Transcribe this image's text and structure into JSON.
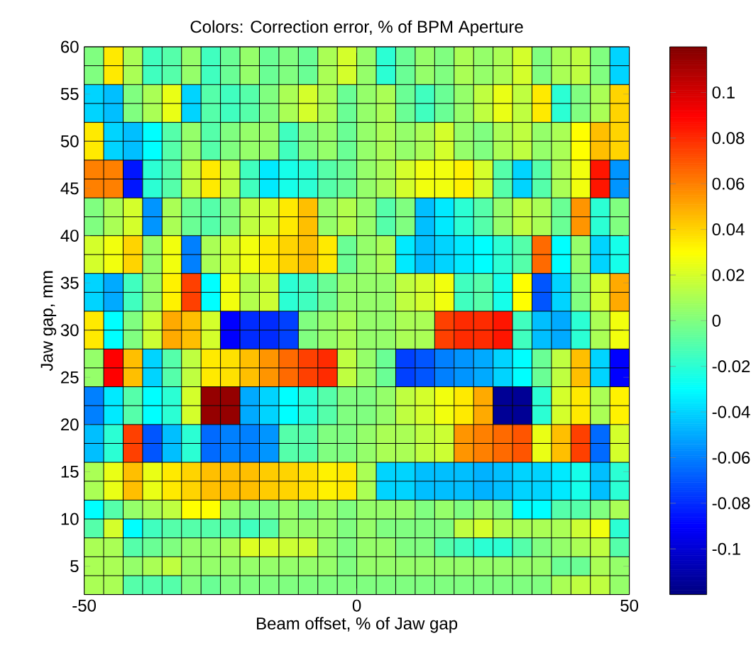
{
  "chart_data": {
    "type": "heatmap",
    "title": "Colors: Correction error, % of BPM Aperture",
    "xlabel": "Beam offset, % of Jaw gap",
    "ylabel": "Jaw gap, mm",
    "grid": true,
    "xlim": [
      -50,
      50
    ],
    "xticks": [
      -50,
      0,
      50
    ],
    "ylim": [
      2,
      60
    ],
    "yticks": [
      5,
      10,
      15,
      20,
      25,
      30,
      35,
      40,
      45,
      50,
      55,
      60
    ],
    "clim": [
      -0.12,
      0.12
    ],
    "cticks": [
      -0.1,
      -0.08,
      -0.06,
      -0.04,
      -0.02,
      0,
      0.02,
      0.04,
      0.06,
      0.08,
      0.1
    ],
    "x": [
      -48.214,
      -44.643,
      -41.071,
      -37.5,
      -33.929,
      -30.357,
      -26.786,
      -23.214,
      -19.643,
      -16.071,
      -12.5,
      -8.929,
      -5.357,
      -1.786,
      1.786,
      5.357,
      8.929,
      12.5,
      16.071,
      19.643,
      23.214,
      26.786,
      30.357,
      33.929,
      37.5,
      41.071,
      44.643,
      48.214
    ],
    "cells": [
      [
        0,
        0.035,
        0.01,
        -0.015,
        -0.01,
        0.005,
        -0.015,
        -0.005,
        0.005,
        -0.005,
        0,
        -0.005,
        0.01,
        0.02,
        0.005,
        -0.02,
        -0.005,
        0.005,
        0,
        0.01,
        0.005,
        0.01,
        0.02,
        0,
        0.01,
        0.015,
        0,
        -0.04
      ],
      [
        0,
        0.035,
        0.01,
        -0.015,
        -0.01,
        0.005,
        -0.015,
        -0.005,
        0.005,
        -0.005,
        0,
        -0.005,
        0.01,
        0.02,
        0.005,
        -0.02,
        -0.005,
        0.005,
        0,
        0.01,
        0.005,
        0.01,
        0.02,
        0,
        0.01,
        0.015,
        0,
        -0.04
      ],
      [
        -0.04,
        -0.045,
        0,
        0.01,
        0.025,
        -0.04,
        -0.01,
        -0.015,
        -0.01,
        0,
        0.01,
        0.02,
        0.01,
        -0.005,
        0.005,
        0.01,
        -0.005,
        -0.015,
        -0.005,
        0.005,
        0.015,
        0.025,
        0.015,
        0.035,
        -0.02,
        0,
        0.01,
        0.04
      ],
      [
        -0.04,
        -0.045,
        0,
        0.01,
        0.025,
        -0.04,
        -0.01,
        -0.015,
        -0.01,
        0,
        0.01,
        0.02,
        0.01,
        -0.005,
        0.005,
        0.01,
        -0.005,
        -0.015,
        -0.005,
        0.005,
        0.015,
        0.025,
        0.015,
        0.035,
        -0.02,
        0,
        0.01,
        0.04
      ],
      [
        0.035,
        -0.04,
        -0.045,
        -0.03,
        -0.01,
        0.005,
        -0.01,
        0,
        0.005,
        0.005,
        -0.015,
        0,
        0.005,
        -0.005,
        0.005,
        0.01,
        0.005,
        0.01,
        0.02,
        0.005,
        0,
        0.01,
        0.015,
        0.005,
        0.01,
        0.03,
        0.045,
        0.04
      ],
      [
        0.035,
        -0.04,
        -0.045,
        -0.03,
        -0.01,
        0.005,
        -0.01,
        0,
        0.005,
        0.005,
        -0.015,
        0,
        0.005,
        -0.005,
        0.005,
        0.01,
        0.005,
        0.01,
        0.02,
        0.005,
        0,
        0.01,
        0.015,
        0.005,
        0.01,
        0.03,
        0.045,
        0.04
      ],
      [
        0.06,
        0.06,
        -0.085,
        -0.02,
        -0.01,
        0.015,
        0.035,
        0.015,
        -0.015,
        -0.035,
        -0.025,
        -0.02,
        -0.01,
        -0.005,
        0.005,
        0.01,
        0.02,
        0.027,
        0.027,
        0.033,
        0.02,
        -0.01,
        -0.04,
        -0.01,
        0.01,
        0.027,
        0.085,
        -0.055
      ],
      [
        0.06,
        0.06,
        -0.085,
        -0.02,
        -0.01,
        0.015,
        0.035,
        0.015,
        -0.015,
        -0.035,
        -0.025,
        -0.02,
        -0.01,
        -0.005,
        0.005,
        0.01,
        0.02,
        0.027,
        0.027,
        0.033,
        0.02,
        -0.01,
        -0.04,
        -0.01,
        0.01,
        0.027,
        0.085,
        -0.055
      ],
      [
        0,
        0.01,
        0.02,
        -0.055,
        0.01,
        -0.005,
        -0.01,
        0,
        0.015,
        0.02,
        0.035,
        0.045,
        0.005,
        0.012,
        0.005,
        -0.01,
        0,
        -0.045,
        -0.035,
        -0.02,
        -0.01,
        0.005,
        0.015,
        0.01,
        -0.005,
        0.055,
        -0.02,
        0
      ],
      [
        0,
        0.01,
        0.02,
        -0.055,
        0.01,
        -0.005,
        -0.01,
        0,
        0.015,
        0.02,
        0.035,
        0.045,
        0.005,
        0.012,
        0.005,
        -0.01,
        0,
        -0.045,
        -0.035,
        -0.02,
        -0.01,
        0.005,
        0.015,
        0.01,
        -0.005,
        0.055,
        -0.02,
        0
      ],
      [
        0.02,
        0.027,
        0.04,
        0.005,
        0.027,
        -0.06,
        0.01,
        0.02,
        0.027,
        0.035,
        0.04,
        0.045,
        0.035,
        -0.005,
        0.005,
        0.01,
        -0.035,
        -0.045,
        -0.04,
        -0.035,
        -0.03,
        -0.02,
        -0.01,
        0.065,
        -0.03,
        0.005,
        -0.04,
        -0.025
      ],
      [
        0.02,
        0.027,
        0.04,
        0.005,
        0.027,
        -0.06,
        0.01,
        0.02,
        0.027,
        0.035,
        0.04,
        0.045,
        0.035,
        -0.005,
        0.005,
        0.01,
        -0.035,
        -0.045,
        -0.04,
        -0.035,
        -0.03,
        -0.02,
        -0.01,
        0.065,
        -0.03,
        0.005,
        -0.04,
        -0.025
      ],
      [
        -0.04,
        -0.05,
        -0.015,
        0.005,
        0.033,
        0.075,
        -0.03,
        0.027,
        0.012,
        0.018,
        -0.02,
        -0.015,
        -0.005,
        0.005,
        0.005,
        0.005,
        0.015,
        0.02,
        0.027,
        -0.015,
        -0.01,
        -0.025,
        0.03,
        -0.07,
        -0.04,
        0,
        0.02,
        0.05
      ],
      [
        -0.04,
        -0.05,
        -0.015,
        0.005,
        0.033,
        0.075,
        -0.03,
        0.027,
        0.012,
        0.018,
        -0.02,
        -0.015,
        -0.005,
        0.005,
        0.005,
        0.005,
        0.015,
        0.02,
        0.027,
        -0.015,
        -0.01,
        -0.025,
        0.03,
        -0.07,
        -0.04,
        0,
        0.02,
        0.05
      ],
      [
        0.035,
        -0.03,
        0,
        0.018,
        0.05,
        0.045,
        0.02,
        -0.09,
        -0.08,
        -0.08,
        -0.075,
        0,
        0.005,
        0.01,
        0.005,
        0.005,
        0.01,
        0.01,
        0.075,
        0.08,
        0.08,
        0.085,
        -0.015,
        -0.045,
        -0.05,
        -0.02,
        0.01,
        0.027
      ],
      [
        0.035,
        -0.03,
        0,
        0.018,
        0.05,
        0.045,
        0.02,
        -0.09,
        -0.08,
        -0.08,
        -0.075,
        0,
        0.005,
        0.01,
        0.005,
        0.005,
        0.01,
        0.01,
        0.075,
        0.08,
        0.08,
        0.085,
        -0.015,
        -0.045,
        -0.05,
        -0.02,
        0.01,
        0.027
      ],
      [
        0.005,
        0.09,
        0.045,
        -0.04,
        -0.01,
        0.015,
        0.035,
        0.037,
        0.045,
        0.055,
        0.065,
        0.075,
        0.08,
        0.015,
        0.005,
        -0.005,
        -0.075,
        -0.07,
        -0.06,
        -0.055,
        -0.05,
        -0.04,
        -0.03,
        -0.005,
        0.015,
        0.045,
        -0.04,
        -0.09
      ],
      [
        0.005,
        0.09,
        0.045,
        -0.04,
        -0.01,
        0.015,
        0.035,
        0.037,
        0.045,
        0.055,
        0.065,
        0.075,
        0.08,
        0.015,
        0.005,
        -0.005,
        -0.075,
        -0.07,
        -0.06,
        -0.055,
        -0.05,
        -0.04,
        -0.03,
        -0.005,
        0.015,
        0.045,
        -0.04,
        -0.09
      ],
      [
        -0.06,
        -0.035,
        -0.01,
        -0.03,
        -0.02,
        0.02,
        0.115,
        0.115,
        -0.05,
        -0.04,
        -0.03,
        -0.02,
        -0.01,
        0,
        0,
        0.005,
        0.015,
        0.02,
        0.027,
        0.035,
        0.05,
        -0.115,
        -0.115,
        -0.02,
        0.02,
        0.035,
        0.01,
        0.033
      ],
      [
        -0.06,
        -0.035,
        -0.01,
        -0.03,
        -0.02,
        0.02,
        0.115,
        0.115,
        -0.05,
        -0.04,
        -0.03,
        -0.02,
        -0.01,
        0,
        0,
        0.005,
        0.015,
        0.02,
        0.027,
        0.035,
        0.05,
        -0.115,
        -0.115,
        -0.02,
        0.02,
        0.035,
        0.01,
        0.033
      ],
      [
        -0.045,
        -0.02,
        0.075,
        -0.07,
        -0.045,
        -0.02,
        -0.065,
        -0.06,
        -0.06,
        -0.055,
        -0.01,
        -0.01,
        0,
        0,
        0.005,
        0.01,
        0.01,
        0.015,
        0.018,
        0.055,
        0.06,
        0.065,
        0.07,
        0.025,
        0.045,
        0.075,
        -0.065,
        0.02
      ],
      [
        -0.045,
        -0.02,
        0.075,
        -0.07,
        -0.045,
        -0.02,
        -0.065,
        -0.06,
        -0.06,
        -0.055,
        -0.01,
        -0.01,
        0,
        0,
        0.005,
        0.01,
        0.01,
        0.015,
        0.018,
        0.055,
        0.06,
        0.065,
        0.07,
        0.025,
        0.045,
        0.075,
        -0.065,
        0.02
      ],
      [
        0.01,
        0.025,
        0.045,
        0.025,
        0.035,
        0.04,
        0.045,
        0.045,
        0.045,
        0.042,
        0.04,
        0.037,
        0.033,
        0.035,
        0.01,
        -0.04,
        -0.04,
        -0.045,
        -0.045,
        -0.045,
        -0.048,
        -0.045,
        -0.04,
        -0.04,
        -0.035,
        -0.025,
        -0.045,
        -0.02
      ],
      [
        0.01,
        0.025,
        0.045,
        0.025,
        0.035,
        0.04,
        0.045,
        0.045,
        0.045,
        0.042,
        0.04,
        0.037,
        0.033,
        0.035,
        0.01,
        -0.04,
        -0.04,
        -0.045,
        -0.045,
        -0.045,
        -0.048,
        -0.045,
        -0.04,
        -0.04,
        -0.035,
        -0.025,
        -0.045,
        -0.02
      ],
      [
        -0.03,
        -0.01,
        0.005,
        0.01,
        0.015,
        0.03,
        0.03,
        0.005,
        0,
        0,
        0.005,
        0,
        0.005,
        0,
        0.005,
        0.005,
        0.005,
        0,
        0.005,
        0,
        0.005,
        0,
        -0.03,
        -0.03,
        -0.01,
        -0.01,
        0,
        0.01
      ],
      [
        -0.01,
        0.02,
        -0.03,
        -0.015,
        -0.01,
        -0.01,
        -0.01,
        -0.01,
        -0.015,
        -0.01,
        0.005,
        0.005,
        0.005,
        0,
        0.005,
        0,
        0,
        0,
        0,
        0.015,
        0.02,
        0.012,
        0.01,
        0.01,
        0.01,
        0.018,
        0.027,
        -0.02
      ],
      [
        0.01,
        0.01,
        -0.01,
        -0.005,
        0,
        0.005,
        0.005,
        0.01,
        0.022,
        0.02,
        0.018,
        0.018,
        0.005,
        0,
        0.005,
        0.005,
        0,
        0,
        -0.01,
        -0.015,
        -0.02,
        -0.02,
        -0.01,
        0,
        0.005,
        0.01,
        0.015,
        -0.01
      ],
      [
        0.01,
        0.01,
        0.005,
        0.01,
        0.015,
        0.005,
        0.005,
        0.005,
        0.005,
        0.005,
        0.005,
        0.005,
        0.005,
        0,
        0.005,
        0.005,
        0.005,
        0.005,
        0.005,
        0.005,
        0.005,
        0.005,
        0.005,
        0.005,
        -0.005,
        -0.005,
        0.01,
        0.005
      ],
      [
        0.01,
        0.01,
        -0.01,
        -0.01,
        -0.01,
        0,
        -0.005,
        0,
        0,
        0,
        0,
        0,
        0,
        0,
        0,
        0,
        0,
        0,
        0,
        0,
        0,
        0,
        0,
        0,
        0.01,
        0.015,
        0.015,
        0.005
      ]
    ]
  }
}
